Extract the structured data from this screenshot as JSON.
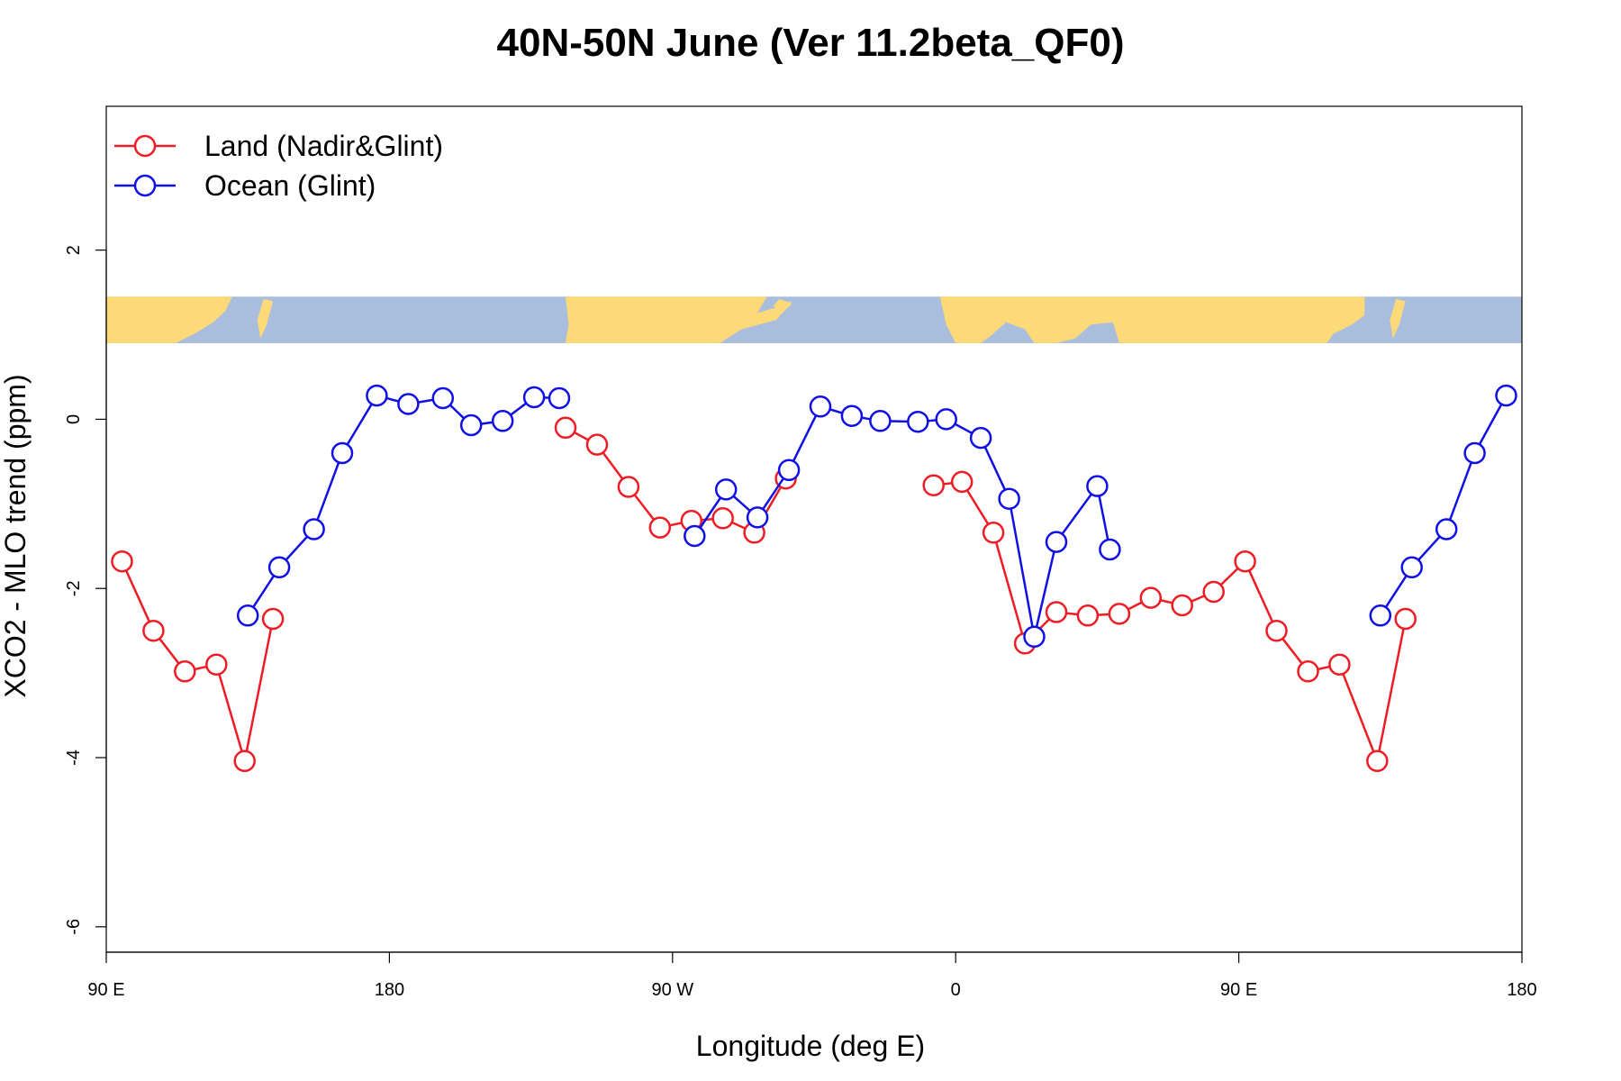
{
  "chart_data": {
    "type": "line",
    "title": "40N-50N June (Ver 11.2beta_QF0)",
    "xlabel": "Longitude (deg E)",
    "ylabel": "XCO2 - MLO trend (ppm)",
    "xlim": [
      90,
      540
    ],
    "ylim": [
      -6.3,
      3.7
    ],
    "x_ticks": [
      {
        "value": 90,
        "label": "90 E"
      },
      {
        "value": 180,
        "label": "180"
      },
      {
        "value": 270,
        "label": "90 W"
      },
      {
        "value": 360,
        "label": "0"
      },
      {
        "value": 450,
        "label": "90 E"
      },
      {
        "value": 540,
        "label": "180"
      }
    ],
    "y_ticks": [
      {
        "value": 2,
        "label": "2"
      },
      {
        "value": 0,
        "label": "0"
      },
      {
        "value": -2,
        "label": "-2"
      },
      {
        "value": -4,
        "label": "-4"
      },
      {
        "value": -6,
        "label": "-6"
      }
    ],
    "grid": false,
    "legend_position": "top-left",
    "map_band": {
      "y_top": 1.45,
      "y_bottom": 0.9,
      "land_color": "#FED978",
      "ocean_color": "#A9BDDD"
    },
    "series": [
      {
        "name": "Land (Nadir&Glint)",
        "color": "#EE1C24",
        "segments": [
          [
            [
              95,
              -1.68
            ],
            [
              105,
              -2.5
            ],
            [
              115,
              -2.98
            ],
            [
              125,
              -2.9
            ],
            [
              134,
              -4.04
            ],
            [
              143,
              -2.36
            ]
          ],
          [
            [
              236,
              -0.1
            ],
            [
              246,
              -0.3
            ],
            [
              256,
              -0.8
            ],
            [
              266,
              -1.28
            ],
            [
              276,
              -1.2
            ],
            [
              286,
              -1.17
            ],
            [
              296,
              -1.34
            ],
            [
              306,
              -0.7
            ]
          ],
          [
            [
              353,
              -0.78
            ],
            [
              362,
              -0.74
            ],
            [
              372,
              -1.34
            ],
            [
              382,
              -2.65
            ],
            [
              392,
              -2.28
            ],
            [
              402,
              -2.32
            ],
            [
              412,
              -2.3
            ],
            [
              422,
              -2.11
            ],
            [
              432,
              -2.2
            ],
            [
              442,
              -2.04
            ],
            [
              452,
              -1.68
            ],
            [
              462,
              -2.5
            ],
            [
              472,
              -2.98
            ],
            [
              482,
              -2.9
            ],
            [
              494,
              -4.04
            ],
            [
              503,
              -2.36
            ]
          ]
        ]
      },
      {
        "name": "Ocean (Glint)",
        "color": "#1010E6",
        "segments": [
          [
            [
              135,
              -2.32
            ],
            [
              145,
              -1.75
            ],
            [
              156,
              -1.3
            ],
            [
              165,
              -0.4
            ],
            [
              176,
              0.28
            ],
            [
              186,
              0.18
            ],
            [
              197,
              0.25
            ],
            [
              206,
              -0.07
            ],
            [
              216,
              -0.02
            ],
            [
              226,
              0.26
            ],
            [
              234,
              0.25
            ]
          ],
          [
            [
              277,
              -1.38
            ],
            [
              287,
              -0.83
            ],
            [
              297,
              -1.16
            ],
            [
              307,
              -0.6
            ],
            [
              317,
              0.15
            ],
            [
              327,
              0.04
            ],
            [
              336,
              -0.02
            ],
            [
              348,
              -0.03
            ],
            [
              357,
              0.0
            ],
            [
              368,
              -0.22
            ],
            [
              377,
              -0.94
            ],
            [
              385,
              -2.57
            ],
            [
              392,
              -1.45
            ],
            [
              405,
              -0.79
            ],
            [
              409,
              -1.54
            ]
          ],
          [
            [
              495,
              -2.32
            ],
            [
              505,
              -1.75
            ],
            [
              516,
              -1.3
            ],
            [
              525,
              -0.4
            ],
            [
              535,
              0.28
            ]
          ]
        ]
      }
    ]
  }
}
